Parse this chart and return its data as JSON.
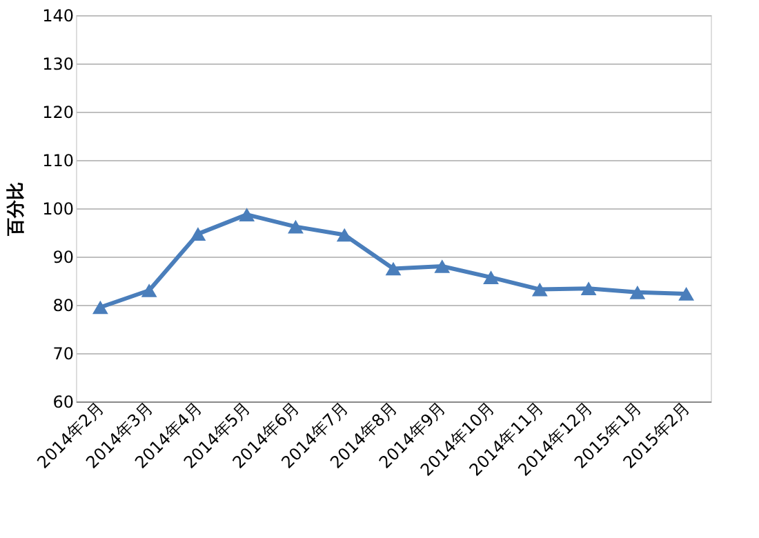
{
  "chart_data": {
    "type": "line",
    "ylabel": "百分比",
    "categories": [
      "2014年2月",
      "2014年3月",
      "2014年4月",
      "2014年5月",
      "2014年6月",
      "2014年7月",
      "2014年8月",
      "2014年9月",
      "2014年10月",
      "2014年11月",
      "2014年12月",
      "2015年1月",
      "2015年2月"
    ],
    "series": [
      {
        "color": "#4a7ebb",
        "values": [
          79.5,
          83,
          94.7,
          98.7,
          96.2,
          94.5,
          87.5,
          88,
          85.7,
          83.2,
          83.4,
          82.6,
          82.3
        ]
      }
    ],
    "ylim": [
      60,
      140
    ],
    "yticks": [
      60,
      70,
      80,
      90,
      100,
      110,
      120,
      130,
      140
    ],
    "grid": "y",
    "marker": "triangle",
    "line_style": "solid"
  }
}
